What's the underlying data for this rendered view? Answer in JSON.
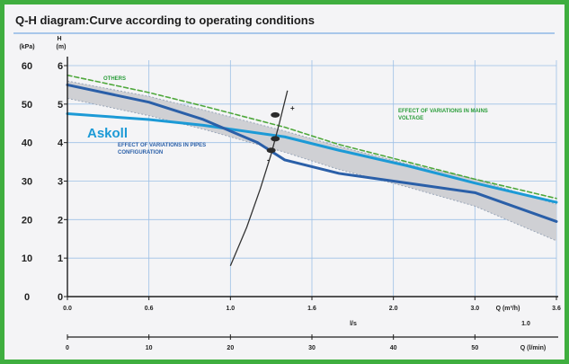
{
  "chart_data": {
    "type": "line",
    "title": "Q-H diagram:Curve according to operating conditions",
    "left_axis_unit": "(kPa)",
    "left_axis_ticks": [
      0,
      10,
      20,
      30,
      40,
      50,
      60
    ],
    "y_axis_unit": "(m)",
    "y_axis_label": "H",
    "ylim": [
      0,
      6
    ],
    "y_ticks": [
      0,
      1,
      2,
      3,
      4,
      5,
      6
    ],
    "x_axis_unit": "Q (m³/h)",
    "xlim": [
      0,
      3.6
    ],
    "x_ticks": [
      "0.0",
      "0.6",
      "1.0",
      "1.6",
      "2.0",
      "3.0",
      "3.6"
    ],
    "secondary_x_label": "l/s",
    "secondary_x_unit": "Q (l/min)",
    "secondary_x_extra": "1.0",
    "secondary_x_ticks": [
      "0",
      "10",
      "20",
      "30",
      "40",
      "50"
    ],
    "annotations": [
      {
        "text": "OTHERS",
        "color": "#2a9d3a"
      },
      {
        "text": "Askoll",
        "color": "#1c9ad6"
      },
      {
        "text": "EFFECT OF VARIATIONS IN PIPES CONFIGURATION",
        "color": "#2a5fa8"
      },
      {
        "text": "EFFECT OF VARIATIONS IN MAINS VOLTAGE",
        "color": "#2a9d3a"
      },
      {
        "text": "+",
        "color": "#222222"
      },
      {
        "text": "-",
        "color": "#222222"
      }
    ],
    "series": [
      {
        "x": [
          0,
          0.6,
          1.0,
          1.6,
          2.0,
          2.5,
          3.0,
          3.6
        ],
        "y": [
          5.75,
          5.3,
          4.95,
          4.4,
          3.95,
          3.5,
          3.05,
          2.55
        ],
        "color": "#4fa83c",
        "dash": true
      },
      {
        "x": [
          0,
          0.6,
          1.0,
          1.6,
          2.0,
          2.5,
          3.0,
          3.6
        ],
        "y": [
          4.75,
          4.6,
          4.45,
          4.15,
          3.8,
          3.4,
          2.95,
          2.45
        ],
        "color": "#1c9ad6"
      },
      {
        "x": [
          0,
          0.6,
          1.0,
          1.4,
          1.6,
          2.0,
          2.5,
          3.0,
          3.6
        ],
        "y": [
          5.5,
          5.05,
          4.6,
          4.0,
          3.55,
          3.2,
          2.95,
          2.7,
          1.95
        ],
        "color": "#2a5fa8"
      }
    ],
    "band_upper": {
      "x": [
        0,
        0.6,
        1.0,
        1.6,
        2.0,
        2.5,
        3.0,
        3.6
      ],
      "y": [
        5.6,
        5.2,
        4.85,
        4.3,
        3.9,
        3.45,
        3.05,
        2.4
      ]
    },
    "band_lower": {
      "x": [
        0,
        0.6,
        1.0,
        1.6,
        2.0,
        2.5,
        3.0,
        3.6
      ],
      "y": [
        5.15,
        4.7,
        4.35,
        3.75,
        3.3,
        2.85,
        2.35,
        1.45
      ]
    },
    "system_curve": {
      "x": [
        1.2,
        1.32,
        1.42,
        1.5,
        1.56,
        1.62
      ],
      "y": [
        0.8,
        1.8,
        2.8,
        3.7,
        4.5,
        5.35
      ]
    },
    "colors": {
      "band": "#cfd0d4",
      "grid": "#9dc0e6",
      "axis": "#1f1f1f",
      "frame": "#3fae3f"
    }
  }
}
